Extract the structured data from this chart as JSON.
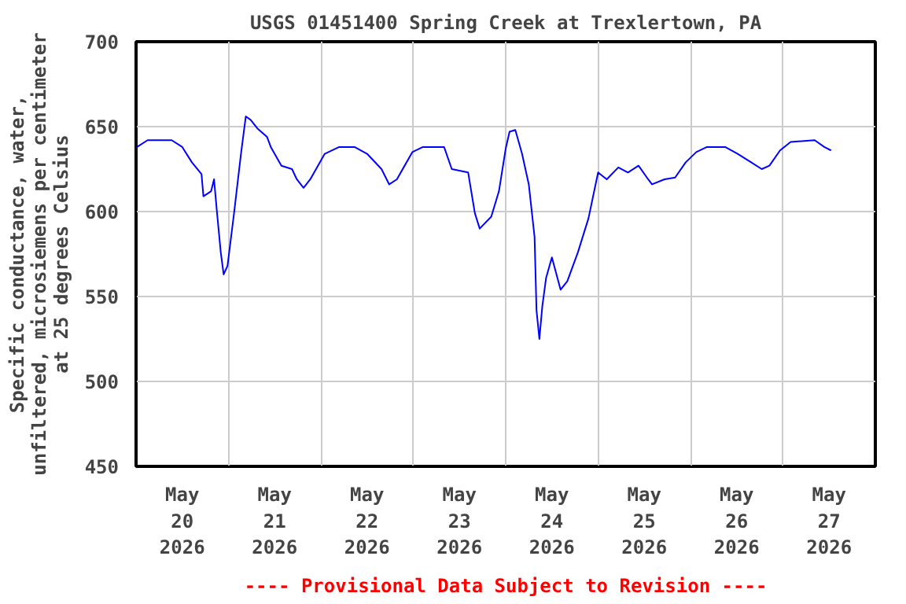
{
  "chart_data": {
    "type": "line",
    "title": "USGS 01451400 Spring Creek at Trexlertown, PA",
    "ylabel": "Specific conductance, water,\nunfiltered, microsiemens per centimeter\nat 25 degrees Celsius",
    "annotations": [
      "---- Provisional Data Subject to Revision ----"
    ],
    "x": [
      "2026-05-20T00:15",
      "2026-05-20T03:00",
      "2026-05-20T09:15",
      "2026-05-20T12:00",
      "2026-05-20T14:30",
      "2026-05-20T17:00",
      "2026-05-20T17:30",
      "2026-05-20T19:30",
      "2026-05-20T20:15",
      "2026-05-20T21:00",
      "2026-05-20T22:00",
      "2026-05-20T22:45",
      "2026-05-20T23:45",
      "2026-05-21T01:30",
      "2026-05-21T03:15",
      "2026-05-21T04:30",
      "2026-05-21T05:45",
      "2026-05-21T07:30",
      "2026-05-21T10:00",
      "2026-05-21T11:00",
      "2026-05-21T13:45",
      "2026-05-21T16:30",
      "2026-05-21T17:45",
      "2026-05-21T19:30",
      "2026-05-21T21:15",
      "2026-05-22T01:00",
      "2026-05-22T04:45",
      "2026-05-22T08:45",
      "2026-05-22T12:00",
      "2026-05-22T15:45",
      "2026-05-22T17:45",
      "2026-05-22T19:45",
      "2026-05-22T23:45",
      "2026-05-23T02:30",
      "2026-05-23T08:00",
      "2026-05-23T10:00",
      "2026-05-23T14:15",
      "2026-05-23T16:00",
      "2026-05-23T17:15",
      "2026-05-23T20:15",
      "2026-05-23T22:15",
      "2026-05-24T00:00",
      "2026-05-24T01:00",
      "2026-05-24T02:30",
      "2026-05-24T04:15",
      "2026-05-24T06:00",
      "2026-05-24T07:30",
      "2026-05-24T08:00",
      "2026-05-24T08:45",
      "2026-05-24T09:30",
      "2026-05-24T10:30",
      "2026-05-24T12:00",
      "2026-05-24T14:15",
      "2026-05-24T16:00",
      "2026-05-24T18:45",
      "2026-05-24T21:30",
      "2026-05-25T00:00",
      "2026-05-25T02:15",
      "2026-05-25T05:15",
      "2026-05-25T07:45",
      "2026-05-25T10:30",
      "2026-05-25T13:00",
      "2026-05-25T14:00",
      "2026-05-25T17:15",
      "2026-05-25T20:00",
      "2026-05-25T22:45",
      "2026-05-26T01:30",
      "2026-05-26T04:15",
      "2026-05-26T09:00",
      "2026-05-26T12:15",
      "2026-05-26T15:45",
      "2026-05-26T18:30",
      "2026-05-26T20:30",
      "2026-05-26T23:15",
      "2026-05-27T02:00",
      "2026-05-27T08:15",
      "2026-05-27T10:45",
      "2026-05-27T12:30"
    ],
    "series": [
      {
        "color": "#0000ff",
        "values": [
          638,
          642,
          642,
          638,
          629,
          622,
          609,
          612,
          619,
          600,
          576,
          563,
          568,
          600,
          634,
          656,
          654,
          649,
          644,
          638,
          627,
          625,
          619,
          614,
          619,
          634,
          638,
          638,
          634,
          625,
          616,
          619,
          635,
          638,
          638,
          625,
          623,
          599,
          590,
          597,
          612,
          637,
          647,
          648,
          634,
          616,
          585,
          542,
          525,
          544,
          561,
          573,
          554,
          559,
          576,
          596,
          623,
          619,
          626,
          623,
          627,
          619,
          616,
          619,
          620,
          629,
          635,
          638,
          638,
          634,
          629,
          625,
          627,
          636,
          641,
          642,
          638,
          636
        ]
      }
    ],
    "xlim": [
      "2026-05-20T00:00",
      "2026-05-28T00:00"
    ],
    "xticks": [
      {
        "value": "2026-05-20T12:00",
        "label": "May\n20\n2026"
      },
      {
        "value": "2026-05-21T00:00",
        "label": null
      },
      {
        "value": "2026-05-21T12:00",
        "label": "May\n21\n2026"
      },
      {
        "value": "2026-05-22T00:00",
        "label": null
      },
      {
        "value": "2026-05-22T12:00",
        "label": "May\n22\n2026"
      },
      {
        "value": "2026-05-23T00:00",
        "label": null
      },
      {
        "value": "2026-05-23T12:00",
        "label": "May\n23\n2026"
      },
      {
        "value": "2026-05-24T00:00",
        "label": null
      },
      {
        "value": "2026-05-24T12:00",
        "label": "May\n24\n2026"
      },
      {
        "value": "2026-05-25T00:00",
        "label": null
      },
      {
        "value": "2026-05-25T12:00",
        "label": "May\n25\n2026"
      },
      {
        "value": "2026-05-26T00:00",
        "label": null
      },
      {
        "value": "2026-05-26T12:00",
        "label": "May\n26\n2026"
      },
      {
        "value": "2026-05-27T00:00",
        "label": null
      },
      {
        "value": "2026-05-27T12:00",
        "label": "May\n27\n2026"
      }
    ],
    "ylim": [
      450,
      700
    ],
    "yticks": [
      450,
      500,
      550,
      600,
      650,
      700
    ],
    "grid": true,
    "marker": "none",
    "line_style": "solid"
  }
}
